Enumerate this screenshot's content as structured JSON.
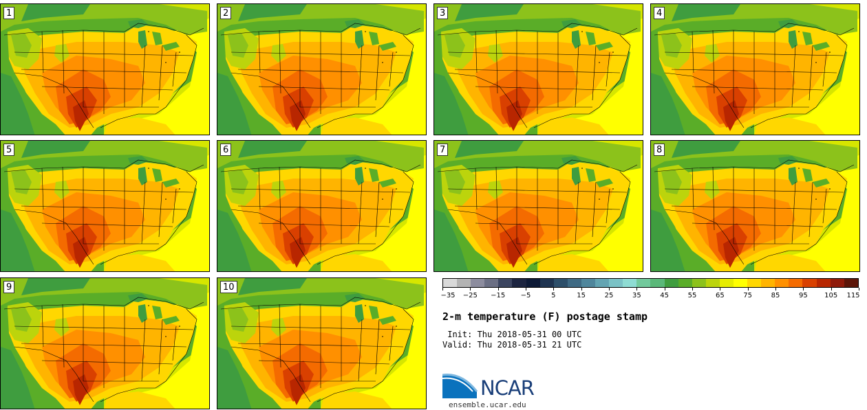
{
  "panels": [
    {
      "label": "1"
    },
    {
      "label": "2"
    },
    {
      "label": "3"
    },
    {
      "label": "4"
    },
    {
      "label": "5"
    },
    {
      "label": "6"
    },
    {
      "label": "7"
    },
    {
      "label": "8"
    },
    {
      "label": "9"
    },
    {
      "label": "10"
    }
  ],
  "colorbar": {
    "colors": [
      "#d9d9d9",
      "#b3b3b3",
      "#8c8c9e",
      "#6b6f84",
      "#3c4560",
      "#1c2440",
      "#0d1a36",
      "#1e3350",
      "#2d4f6a",
      "#3f6a84",
      "#4f869c",
      "#63a4b2",
      "#7ac2c6",
      "#8edcd3",
      "#72c99c",
      "#5ab879",
      "#3f9d3f",
      "#5aad28",
      "#8cc21b",
      "#bcd40c",
      "#e6ec00",
      "#ffff00",
      "#ffd700",
      "#ffb400",
      "#ff9000",
      "#f46b00",
      "#d94000",
      "#b82600",
      "#8f1a0a",
      "#5c1508"
    ],
    "tick_labels": [
      "−35",
      "−25",
      "−15",
      "−5",
      "5",
      "15",
      "25",
      "35",
      "45",
      "55",
      "65",
      "75",
      "85",
      "95",
      "105",
      "115"
    ]
  },
  "title": "2-m temperature (F) postage stamp",
  "init": " Init: Thu 2018-05-31 00 UTC",
  "valid": "Valid: Thu 2018-05-31 21 UTC",
  "logo": {
    "text": "NCAR",
    "site": "ensemble.ucar.edu"
  }
}
